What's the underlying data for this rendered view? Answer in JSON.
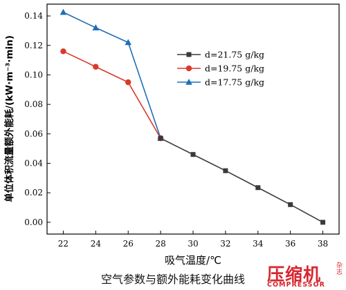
{
  "chart_data": {
    "type": "line",
    "title": "",
    "xlabel": "吸气温度/℃",
    "ylabel": "单位体积流量额外能耗/(kW·m⁻³·min)",
    "xlim": [
      21,
      39
    ],
    "ylim": [
      -0.008,
      0.148
    ],
    "xticks": [
      22,
      24,
      26,
      28,
      30,
      32,
      34,
      36,
      38
    ],
    "yticks": [
      0.0,
      0.02,
      0.04,
      0.06,
      0.08,
      0.1,
      0.12,
      0.14
    ],
    "legend_position": "right-center",
    "series": [
      {
        "name": "d=21.75 g/kg",
        "color": "#3a3a3a",
        "marker": "square",
        "x": [
          28,
          30,
          32,
          34,
          36,
          38
        ],
        "values": [
          0.057,
          0.046,
          0.035,
          0.0235,
          0.012,
          0.0
        ]
      },
      {
        "name": "d=19.75 g/kg",
        "color": "#d93a2b",
        "marker": "circle",
        "x": [
          22,
          24,
          26,
          28
        ],
        "values": [
          0.116,
          0.1055,
          0.095,
          0.057
        ]
      },
      {
        "name": "d=17.75 g/kg",
        "color": "#1f6fb5",
        "marker": "triangle",
        "x": [
          22,
          24,
          26,
          28
        ],
        "values": [
          0.1425,
          0.132,
          0.122,
          0.057
        ]
      }
    ]
  },
  "caption": "空气参数与额外能耗变化曲线",
  "logo": {
    "cn": "压缩机",
    "en": "COMPRESSOR",
    "side": "杂志"
  }
}
